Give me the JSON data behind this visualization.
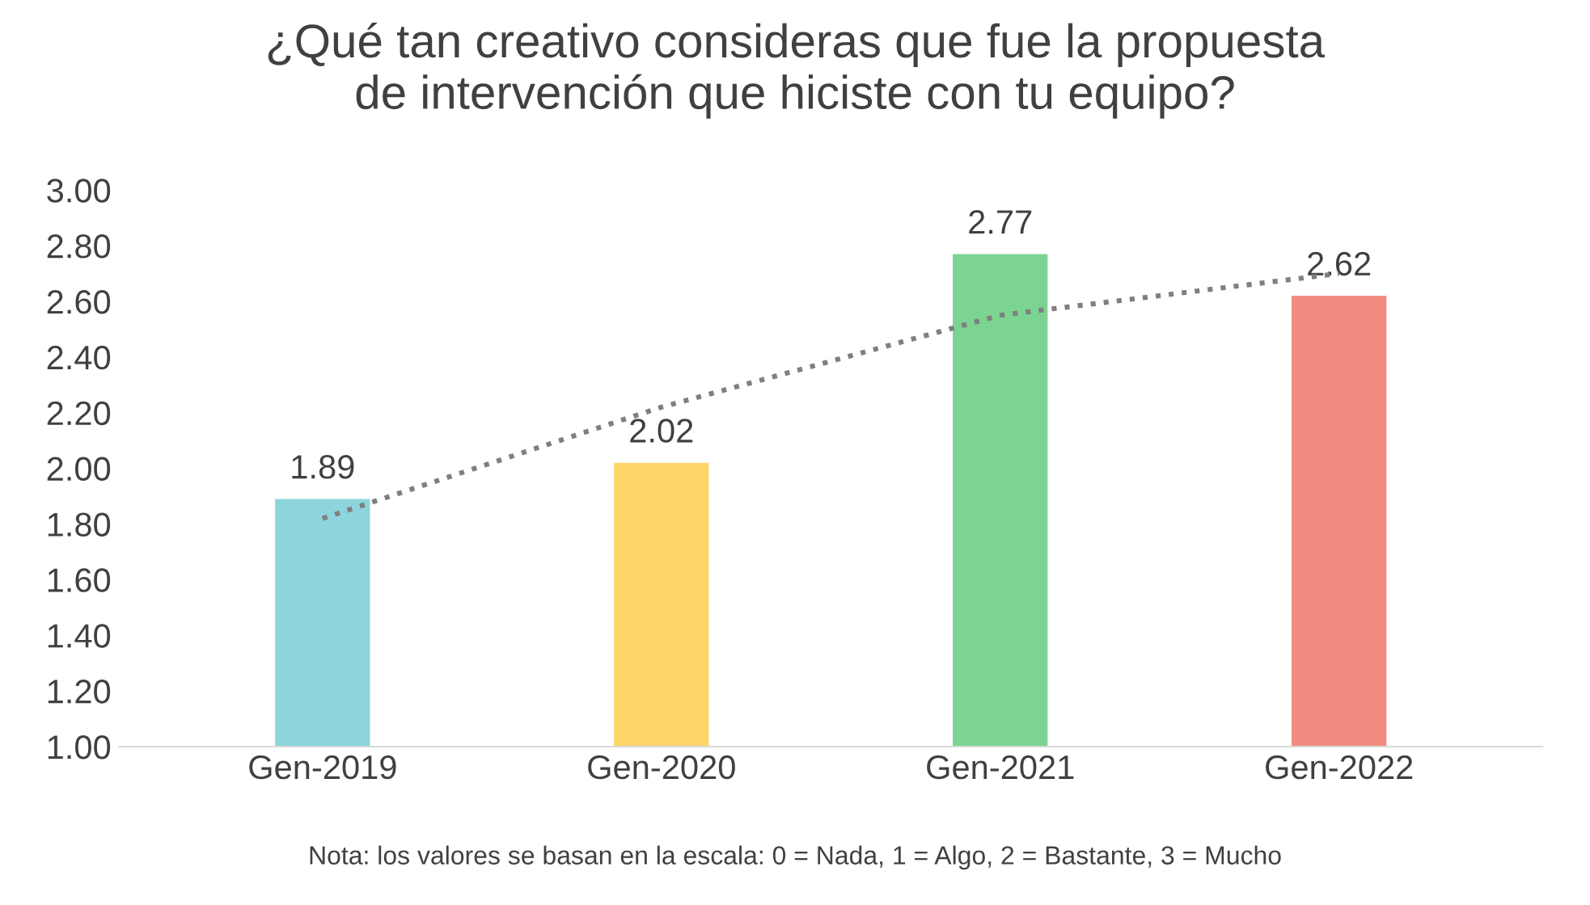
{
  "chart_data": {
    "type": "bar",
    "title": "¿Qué tan creativo consideras que fue la propuesta\nde intervención que hiciste con tu equipo?",
    "categories": [
      "Gen-2019",
      "Gen-2020",
      "Gen-2021",
      "Gen-2022"
    ],
    "series": [
      {
        "values": [
          1.89,
          2.02,
          2.77,
          2.62
        ],
        "colors": [
          "#8dd5dc",
          "#fcd46a",
          "#7bd491",
          "#f28c82"
        ],
        "data_labels": true
      },
      {
        "type": "line",
        "x": [
          "Gen-2019",
          "Gen-2020",
          "Gen-2021",
          "Gen-2022"
        ],
        "values": [
          1.82,
          2.22,
          2.55,
          2.7
        ],
        "color": "#7f7f7f",
        "line_style": "dotted",
        "marker": "none"
      }
    ],
    "ylim": [
      1.0,
      3.0
    ],
    "yticks": [
      {
        "value": 1.0,
        "label": "1.00"
      },
      {
        "value": 1.2,
        "label": "1.20"
      },
      {
        "value": 1.4,
        "label": "1.40"
      },
      {
        "value": 1.6,
        "label": "1.60"
      },
      {
        "value": 1.8,
        "label": "1.80"
      },
      {
        "value": 2.0,
        "label": "2.00"
      },
      {
        "value": 2.2,
        "label": "2.20"
      },
      {
        "value": 2.4,
        "label": "2.40"
      },
      {
        "value": 2.6,
        "label": "2.60"
      },
      {
        "value": 2.8,
        "label": "2.80"
      },
      {
        "value": 3.0,
        "label": "3.00"
      }
    ],
    "grid": false,
    "annotations": [
      "Nota: los valores se basan en la escala: 0 = Nada, 1 = Algo, 2 = Bastante, 3 = Mucho"
    ]
  }
}
